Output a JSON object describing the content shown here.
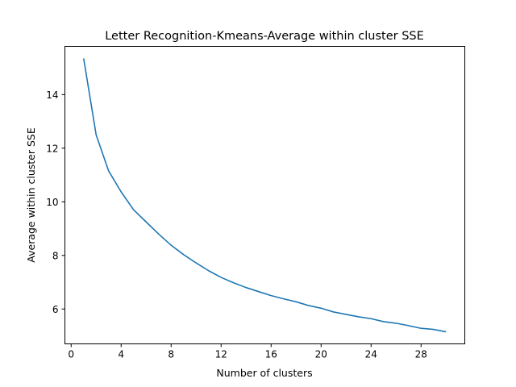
{
  "chart_data": {
    "type": "line",
    "title": "Letter Recognition-Kmeans-Average within cluster SSE",
    "xlabel": "Number of clusters",
    "ylabel": "Average within cluster SSE",
    "xlim": [
      -0.5,
      31.5
    ],
    "ylim": [
      4.7,
      15.8
    ],
    "x_ticks": [
      0,
      4,
      8,
      12,
      16,
      20,
      24,
      28
    ],
    "y_ticks": [
      6,
      8,
      10,
      12,
      14
    ],
    "grid": false,
    "series": [
      {
        "color": "#1f77b4",
        "x": [
          1,
          2,
          3,
          4,
          5,
          6,
          7,
          8,
          9,
          10,
          11,
          12,
          13,
          14,
          15,
          16,
          17,
          18,
          19,
          20,
          21,
          22,
          23,
          24,
          25,
          26,
          27,
          28,
          29,
          30
        ],
        "values": [
          15.35,
          12.5,
          11.15,
          10.37,
          9.7,
          9.25,
          8.8,
          8.38,
          8.03,
          7.72,
          7.43,
          7.18,
          6.98,
          6.8,
          6.65,
          6.5,
          6.38,
          6.27,
          6.13,
          6.03,
          5.89,
          5.8,
          5.71,
          5.64,
          5.53,
          5.47,
          5.38,
          5.28,
          5.24,
          5.15
        ]
      }
    ]
  }
}
